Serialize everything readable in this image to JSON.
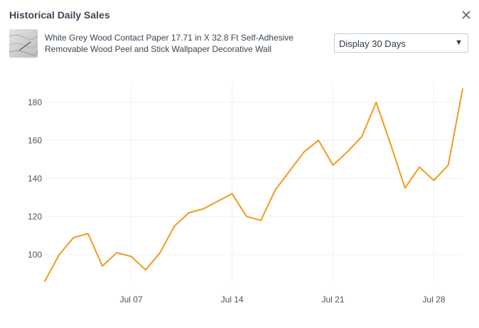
{
  "header": {
    "title": "Historical Daily Sales",
    "close_icon": "close-icon"
  },
  "product": {
    "title_line1": "White Grey Wood Contact Paper 17.71 in X 32.8 Ft Self-Adhesive",
    "title_line2": "Removable Wood Peel and Stick Wallpaper Decorative Wall",
    "thumbnail_icon": "wood-texture-thumbnail"
  },
  "range_select": {
    "selected": "Display 30 Days",
    "arrow_icon": "dropdown-triangle-icon"
  },
  "colors": {
    "line": "#f39a1b",
    "grid": "#eef0f2",
    "text": "#3d4a57"
  },
  "chart_data": {
    "type": "line",
    "xlabel": "",
    "ylabel": "",
    "ylim": [
      85,
      190
    ],
    "xlim": [
      "2024-07-01",
      "2024-07-30"
    ],
    "x_tick_labels": [
      "Jul 07",
      "Jul 14",
      "Jul 21",
      "Jul 28"
    ],
    "y_ticks": [
      100,
      120,
      140,
      160,
      180
    ],
    "grid": true,
    "series": [
      {
        "x": [
          "2024-07-01",
          "2024-07-02",
          "2024-07-03",
          "2024-07-04",
          "2024-07-05",
          "2024-07-06",
          "2024-07-07",
          "2024-07-08",
          "2024-07-09",
          "2024-07-10",
          "2024-07-11",
          "2024-07-12",
          "2024-07-13",
          "2024-07-14",
          "2024-07-15",
          "2024-07-16",
          "2024-07-17",
          "2024-07-18",
          "2024-07-19",
          "2024-07-20",
          "2024-07-21",
          "2024-07-22",
          "2024-07-23",
          "2024-07-24",
          "2024-07-25",
          "2024-07-26",
          "2024-07-27",
          "2024-07-28",
          "2024-07-29",
          "2024-07-30"
        ],
        "values": [
          86,
          100,
          109,
          111,
          94,
          101,
          99,
          92,
          101,
          115,
          122,
          124,
          128,
          132,
          120,
          118,
          134,
          144,
          154,
          160,
          147,
          154,
          162,
          180,
          158,
          135,
          146,
          139,
          147,
          187
        ]
      }
    ]
  }
}
